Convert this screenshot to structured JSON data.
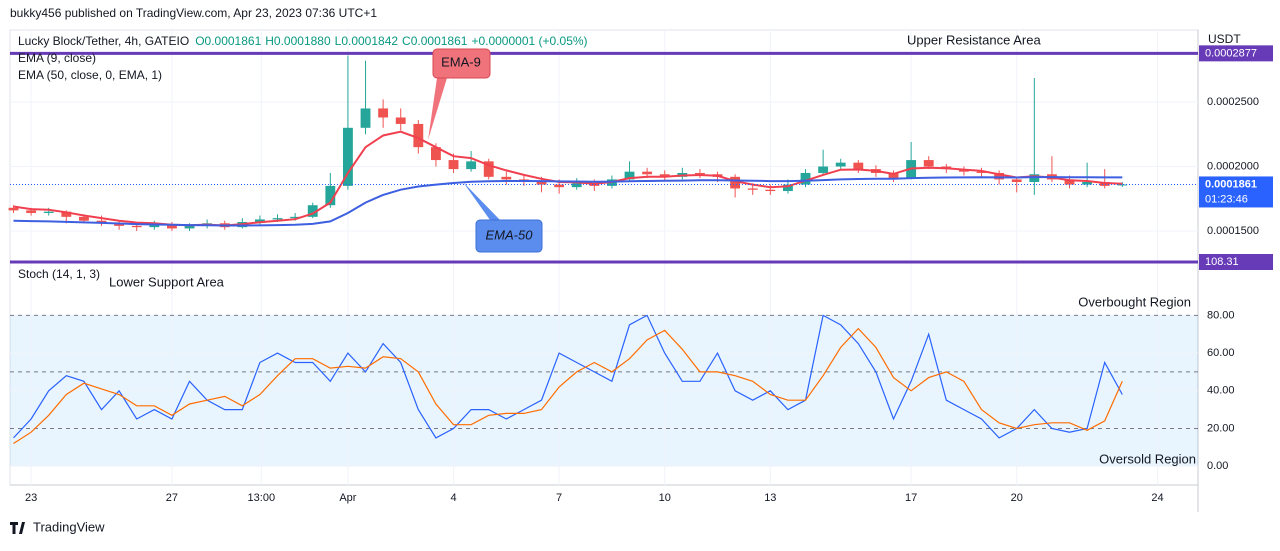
{
  "header": {
    "published": "bukky456 published on TradingView.com, Apr 23, 2023 07:36 UTC+1",
    "brand": "TradingView"
  },
  "chart_data": [
    {
      "type": "candlestick",
      "title": "Lucky Block/Tether, 4h, GATEIO",
      "ohlc_labels": [
        "O0.0001861",
        "H0.0001880",
        "L0.0001842",
        "C0.0001861",
        "+0.0000001 (+0.05%)"
      ],
      "unit": "USDT",
      "x": [
        -0.5,
        0,
        0.5,
        1,
        1.5,
        2,
        2.5,
        3,
        3.5,
        4,
        4.5,
        5,
        5.5,
        6,
        6.5,
        7,
        7.5,
        8,
        8.5,
        9,
        9.5,
        10,
        10.5,
        11,
        11.5,
        12,
        12.5,
        13,
        13.5,
        14,
        14.5,
        15,
        15.5,
        16,
        16.5,
        17,
        17.5,
        18,
        18.5,
        19,
        19.5,
        20,
        20.5,
        21,
        21.5,
        22,
        22.5,
        23,
        23.5,
        24,
        24.5,
        25,
        25.5,
        26,
        26.5,
        27,
        27.5,
        28,
        28.5,
        29,
        29.5,
        30,
        30.5,
        31
      ],
      "open": [
        0.000168,
        0.000166,
        0.000164,
        0.000165,
        0.000161,
        0.000158,
        0.000156,
        0.000154,
        0.000153,
        0.000155,
        0.000152,
        0.000154,
        0.000156,
        0.000153,
        0.000157,
        0.000159,
        0.00016,
        0.000161,
        0.00017,
        0.000185,
        0.00023,
        0.000245,
        0.000238,
        0.000233,
        0.000215,
        0.000205,
        0.000198,
        0.000204,
        0.000192,
        0.00019,
        0.000188,
        0.000186,
        0.000184,
        0.000187,
        0.000185,
        0.00019,
        0.000196,
        0.000194,
        0.000192,
        0.000195,
        0.000194,
        0.000192,
        0.000183,
        0.000182,
        0.000181,
        0.000186,
        0.000195,
        0.0002,
        0.000203,
        0.000198,
        0.000195,
        0.000191,
        0.000205,
        0.0002,
        0.000198,
        0.000196,
        0.000195,
        0.00019,
        0.000188,
        0.000194,
        0.00019,
        0.000186,
        0.000188,
        0.0001861
      ],
      "high": [
        0.00017,
        0.000168,
        0.000168,
        0.000166,
        0.000163,
        0.000162,
        0.000158,
        0.000156,
        0.000158,
        0.000157,
        0.000156,
        0.000159,
        0.000158,
        0.00016,
        0.000162,
        0.000163,
        0.000164,
        0.000172,
        0.000195,
        0.000286,
        0.000282,
        0.000252,
        0.000245,
        0.000236,
        0.000218,
        0.00021,
        0.000212,
        0.000206,
        0.000196,
        0.000194,
        0.000192,
        0.00019,
        0.000191,
        0.00019,
        0.000193,
        0.000204,
        0.000199,
        0.000197,
        0.000199,
        0.000198,
        0.000196,
        0.000194,
        0.000187,
        0.000186,
        0.00019,
        0.000198,
        0.000213,
        0.000206,
        0.000205,
        0.000201,
        0.000197,
        0.000219,
        0.000208,
        0.000202,
        0.0002,
        0.000199,
        0.000197,
        0.000192,
        0.0002686,
        0.000208,
        0.000193,
        0.000203,
        0.000198,
        0.000188
      ],
      "low": [
        0.000164,
        0.000162,
        0.000162,
        0.000156,
        0.000156,
        0.000154,
        0.000151,
        0.00015,
        0.000151,
        0.00015,
        0.00015,
        0.000152,
        0.000151,
        0.000152,
        0.000155,
        0.000157,
        0.000158,
        0.00016,
        0.000168,
        0.000182,
        0.000225,
        0.00023,
        0.000228,
        0.00021,
        0.0002,
        0.000195,
        0.000196,
        0.00019,
        0.000186,
        0.000185,
        0.00018,
        0.000179,
        0.000182,
        0.000181,
        0.000183,
        0.000188,
        0.000191,
        0.000189,
        0.00019,
        0.000191,
        0.000188,
        0.000176,
        0.000178,
        0.000178,
        0.000179,
        0.000184,
        0.000193,
        0.000197,
        0.000195,
        0.000192,
        0.000188,
        0.00019,
        0.000198,
        0.000195,
        0.000193,
        0.000192,
        0.000186,
        0.00018,
        0.000178,
        0.000188,
        0.000183,
        0.000184,
        0.000183,
        0.0001842
      ],
      "close": [
        0.000166,
        0.000164,
        0.000165,
        0.000161,
        0.000158,
        0.000156,
        0.000154,
        0.000153,
        0.000155,
        0.000152,
        0.000154,
        0.000156,
        0.000153,
        0.000157,
        0.000159,
        0.00016,
        0.000161,
        0.00017,
        0.000185,
        0.00023,
        0.000245,
        0.000238,
        0.000233,
        0.000215,
        0.000205,
        0.000198,
        0.000204,
        0.000192,
        0.00019,
        0.000188,
        0.000186,
        0.000184,
        0.000187,
        0.000185,
        0.00019,
        0.000196,
        0.000194,
        0.000192,
        0.000195,
        0.000194,
        0.000192,
        0.000183,
        0.000182,
        0.000181,
        0.000186,
        0.000195,
        0.0002,
        0.000203,
        0.000198,
        0.000195,
        0.000191,
        0.000205,
        0.0002,
        0.000198,
        0.000196,
        0.000195,
        0.00019,
        0.000188,
        0.000194,
        0.00019,
        0.000186,
        0.000188,
        0.000185,
        0.0001861
      ],
      "up_color": "#26a69a",
      "down_color": "#ef5350",
      "series": [
        {
          "name": "EMA (9, close)",
          "color": "#f0404f",
          "values": [
            0.000169,
            0.000167,
            0.0001665,
            0.0001645,
            0.000162,
            0.00016,
            0.000158,
            0.0001565,
            0.000156,
            0.0001548,
            0.0001545,
            0.000155,
            0.0001543,
            0.0001554,
            0.0001568,
            0.000158,
            0.0001592,
            0.0001635,
            0.000172,
            0.000195,
            0.000215,
            0.000224,
            0.000227,
            0.000222,
            0.000215,
            0.000208,
            0.0002065,
            0.000201,
            0.000197,
            0.0001935,
            0.0001905,
            0.000188,
            0.0001877,
            0.0001866,
            0.000188,
            0.000191,
            0.000192,
            0.000192,
            0.000193,
            0.0001934,
            0.0001928,
            0.0001887,
            0.000186,
            0.000184,
            0.0001847,
            0.000189,
            0.0001935,
            0.0001975,
            0.0001977,
            0.0001966,
            0.0001943,
            0.0001985,
            0.0001991,
            0.0001987,
            0.0001976,
            0.0001966,
            0.000194,
            0.0001915,
            0.0001925,
            0.0001915,
            0.0001893,
            0.0001888,
            0.0001872,
            0.0001867
          ]
        },
        {
          "name": "EMA (50, close, 0, EMA, 1)",
          "color": "#3d5fe0",
          "values": [
            0.000158,
            0.0001577,
            0.0001575,
            0.0001571,
            0.0001567,
            0.0001563,
            0.0001558,
            0.0001554,
            0.0001551,
            0.0001548,
            0.0001546,
            0.0001545,
            0.0001543,
            0.0001543,
            0.0001544,
            0.0001546,
            0.0001548,
            0.0001555,
            0.0001575,
            0.000164,
            0.000172,
            0.000178,
            0.000182,
            0.0001845,
            0.000186,
            0.0001872,
            0.0001882,
            0.0001886,
            0.0001888,
            0.0001888,
            0.0001887,
            0.0001885,
            0.0001884,
            0.0001882,
            0.0001883,
            0.0001886,
            0.0001888,
            0.0001889,
            0.0001891,
            0.0001893,
            0.0001894,
            0.0001892,
            0.000189,
            0.0001887,
            0.0001887,
            0.000189,
            0.0001895,
            0.00019,
            0.0001903,
            0.0001905,
            0.0001905,
            0.000191,
            0.0001913,
            0.0001915,
            0.0001916,
            0.0001917,
            0.0001916,
            0.0001915,
            0.0001918,
            0.0001918,
            0.0001917,
            0.0001917,
            0.0001916,
            0.0001916
          ]
        }
      ],
      "xlim": [
        -0.6,
        33.15
      ],
      "xticks": [
        {
          "value": 0,
          "label": "23"
        },
        {
          "value": 4,
          "label": "27"
        },
        {
          "value": 6.54,
          "label": "13:00"
        },
        {
          "value": 9,
          "label": "Apr"
        },
        {
          "value": 12,
          "label": "4"
        },
        {
          "value": 15,
          "label": "7"
        },
        {
          "value": 18,
          "label": "10"
        },
        {
          "value": 21,
          "label": "13"
        },
        {
          "value": 25,
          "label": "17"
        },
        {
          "value": 28,
          "label": "20"
        },
        {
          "value": 32,
          "label": "24"
        }
      ],
      "ylim": [
        0.000126,
        0.0003058
      ],
      "yticks": [
        {
          "value": 0.00015,
          "label": "0.0001500"
        },
        {
          "value": 0.0002,
          "label": "0.0002000"
        },
        {
          "value": 0.00025,
          "label": "0.0002500"
        }
      ],
      "level": {
        "value": 0.0002877,
        "label": "0.0002877",
        "color": "#673ab7"
      },
      "last": {
        "value": 0.0001861,
        "label": "0.0001861",
        "countdown": "01:23:46",
        "color": "#2962ff"
      },
      "annotations": [
        "Upper Resistance Area",
        "EMA-9",
        "EMA-50"
      ],
      "grid": true
    },
    {
      "type": "line",
      "title": "Stoch (14, 1, 3)",
      "series": [
        {
          "color": "#2962ff",
          "values": [
            15,
            25,
            40,
            48,
            45,
            30,
            40,
            25,
            30,
            25,
            45,
            35,
            30,
            30,
            55,
            60,
            55,
            55,
            45,
            60,
            50,
            65,
            55,
            30,
            15,
            20,
            30,
            30,
            25,
            30,
            35,
            60,
            55,
            50,
            45,
            75,
            80,
            60,
            45,
            45,
            60,
            40,
            35,
            40,
            30,
            35,
            80,
            75,
            65,
            50,
            25,
            45,
            70,
            35,
            30,
            25,
            15,
            20,
            30,
            20,
            18,
            20,
            55,
            38
          ]
        },
        {
          "color": "#ff6d00",
          "values": [
            12,
            18,
            27,
            38,
            44,
            41,
            38,
            32,
            32,
            27,
            33,
            35,
            37,
            32,
            38,
            48,
            57,
            57,
            52,
            53,
            52,
            58,
            57,
            50,
            33,
            22,
            22,
            27,
            28,
            28,
            30,
            42,
            50,
            55,
            50,
            57,
            67,
            72,
            62,
            50,
            50,
            48,
            45,
            38,
            35,
            35,
            48,
            63,
            73,
            63,
            47,
            40,
            47,
            50,
            45,
            30,
            23,
            20,
            22,
            23,
            23,
            19,
            24,
            45
          ]
        }
      ],
      "ylim": [
        -10,
        108.31
      ],
      "yticks": [
        {
          "value": 0,
          "label": "0.00"
        },
        {
          "value": 20,
          "label": "20.00"
        },
        {
          "value": 40,
          "label": "40.00"
        },
        {
          "value": 60,
          "label": "60.00"
        },
        {
          "value": 80,
          "label": "80.00"
        }
      ],
      "hlines": [
        80,
        50,
        20
      ],
      "level": {
        "value": 108.31,
        "label": "108.31",
        "color": "#673ab7"
      },
      "annotations": [
        "Lower Support Area",
        "Overbought Region",
        "Oversold Region"
      ],
      "grid": true
    }
  ]
}
